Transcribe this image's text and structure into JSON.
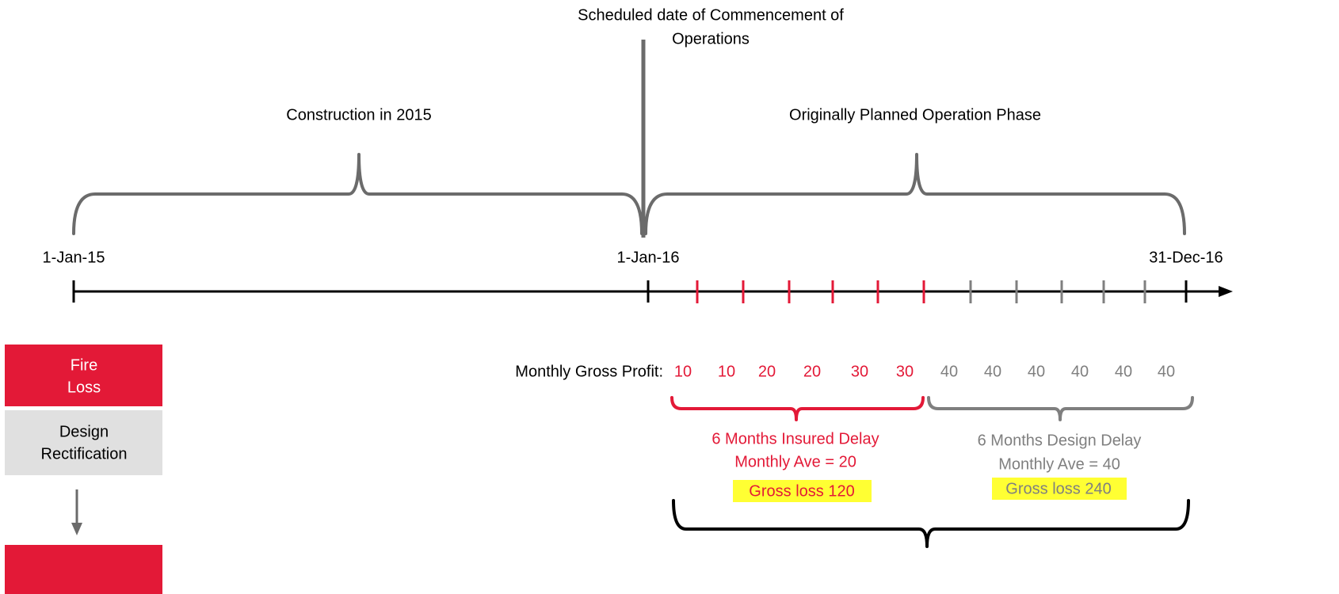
{
  "header": {
    "title": [
      "Scheduled date of Commencement of",
      "Operations"
    ]
  },
  "phases": {
    "construction": "Construction in 2015",
    "operation": "Originally Planned Operation Phase"
  },
  "dates": {
    "start": "1-Jan-15",
    "commencement": "1-Jan-16",
    "end": "31-Dec-16"
  },
  "boxes": {
    "fire_loss": [
      "Fire",
      "Loss"
    ],
    "design_rectification": [
      "Design",
      "Rectification"
    ]
  },
  "profit": {
    "label": "Monthly Gross Profit:",
    "values": [
      10,
      10,
      20,
      20,
      30,
      30,
      40,
      40,
      40,
      40,
      40,
      40
    ]
  },
  "insured_delay": {
    "title": "6 Months Insured Delay",
    "average": "Monthly Ave = 20",
    "loss": "Gross loss 120"
  },
  "design_delay": {
    "title": "6 Months Design Delay",
    "average": "Monthly Ave = 40",
    "loss": "Gross loss 240"
  }
}
